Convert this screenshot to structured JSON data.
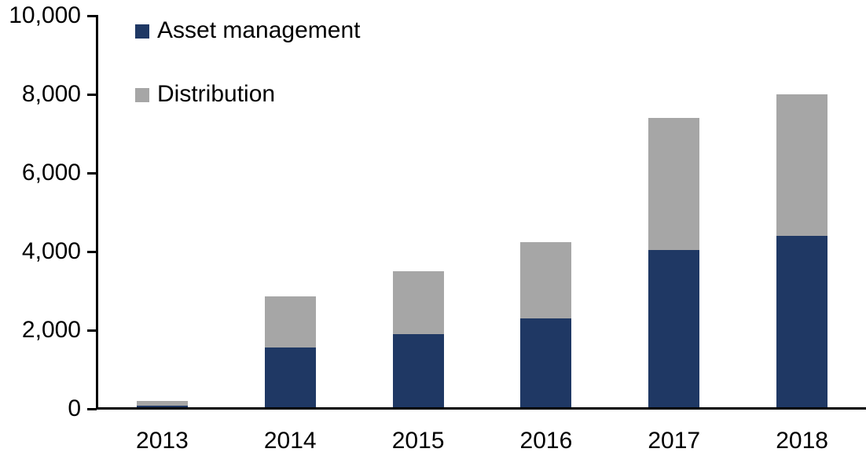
{
  "chart_data": {
    "type": "bar",
    "stacked": true,
    "title": "",
    "categories": [
      "2013",
      "2014",
      "2015",
      "2016",
      "2017",
      "2018"
    ],
    "series": [
      {
        "name": "Asset management",
        "color": "#1F3864",
        "values": [
          90,
          1560,
          1900,
          2300,
          4050,
          4400
        ]
      },
      {
        "name": "Distribution",
        "color": "#A6A6A6",
        "values": [
          110,
          1300,
          1600,
          1950,
          3350,
          3600
        ]
      }
    ],
    "ylim": [
      0,
      10000
    ],
    "y_tick_interval": 2000,
    "y_tick_labels": [
      "0",
      "2,000",
      "4,000",
      "6,000",
      "8,000",
      "10,000"
    ],
    "grid": false,
    "legend_position": "top-left",
    "axis_color": "#000000",
    "background_color": "#FFFFFF"
  }
}
